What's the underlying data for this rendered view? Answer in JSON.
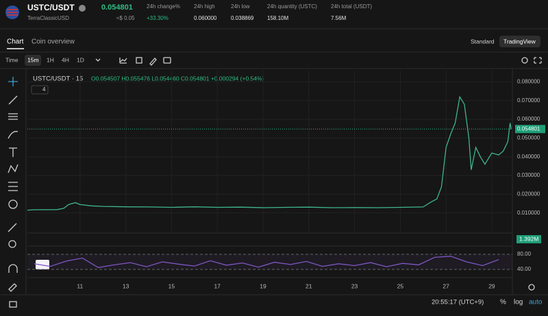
{
  "header": {
    "pair": "USTC/USDT",
    "name": "TerraClassicUSD",
    "price": "0.054801",
    "price_usd": "≈$ 0.05",
    "stats": [
      {
        "label": "24h change%",
        "value": "+33.30%"
      },
      {
        "label": "24h high",
        "value": "0.060000"
      },
      {
        "label": "24h low",
        "value": "0.038869"
      },
      {
        "label": "24h quantity (USTC)",
        "value": "158.10M"
      },
      {
        "label": "24h total (USDT)",
        "value": "7.56M"
      }
    ]
  },
  "tabs": [
    "Chart",
    "Coin overview"
  ],
  "views": [
    "Standard",
    "TradingView"
  ],
  "toolbar": {
    "label": "Time",
    "intervals": [
      "15m",
      "1H",
      "4H",
      "1D"
    ]
  },
  "legend": {
    "symbol": "USTC/USDT · 15",
    "ohlc": "O0.054507 H0.055476 L0.054460 C0.054801 +0.000294 (+0.54%)",
    "indicator_count": "4"
  },
  "volume_label": "1.392M",
  "chart_data": [
    {
      "type": "line",
      "color": "#3fb68b",
      "x": [
        8.7,
        9,
        10,
        10.3,
        10.5,
        10.8,
        11,
        11.5,
        12,
        13,
        14,
        15,
        16,
        17,
        18,
        19,
        20,
        21,
        22,
        23,
        24,
        25,
        26,
        26.3,
        26.6,
        26.8,
        27,
        27.2,
        27.4,
        27.6,
        27.8,
        28.0,
        28.1,
        28.3,
        28.5,
        28.7,
        29,
        29.3,
        29.5,
        29.7,
        29.8,
        29.85
      ],
      "values": [
        0.0115,
        0.0117,
        0.0118,
        0.0125,
        0.0145,
        0.0155,
        0.0145,
        0.0138,
        0.0135,
        0.0133,
        0.0132,
        0.013,
        0.0133,
        0.013,
        0.0131,
        0.0128,
        0.013,
        0.0131,
        0.0128,
        0.0129,
        0.0128,
        0.013,
        0.0132,
        0.0155,
        0.0175,
        0.024,
        0.045,
        0.052,
        0.058,
        0.072,
        0.068,
        0.05,
        0.033,
        0.045,
        0.04,
        0.036,
        0.042,
        0.041,
        0.043,
        0.048,
        0.058,
        0.0548
      ],
      "last_value": 0.054801,
      "xlim": [
        8.7,
        29.9
      ],
      "xticks": [
        11,
        13,
        15,
        17,
        19,
        21,
        23,
        25,
        27,
        29
      ],
      "ylim": [
        0,
        0.086
      ],
      "yticks": [
        {
          "value": 0.01,
          "label": "0.010000"
        },
        {
          "value": 0.02,
          "label": "0.020000"
        },
        {
          "value": 0.03,
          "label": "0.030000"
        },
        {
          "value": 0.04,
          "label": "0.040000"
        },
        {
          "value": 0.05,
          "label": "0.050000"
        },
        {
          "value": 0.06,
          "label": "0.060000"
        },
        {
          "value": 0.07,
          "label": "0.070000"
        },
        {
          "value": 0.08,
          "label": "0.080000"
        }
      ]
    },
    {
      "type": "line",
      "color": "#7e57c2",
      "x": [
        9,
        9.7,
        10.4,
        11.1,
        11.8,
        12.5,
        13.2,
        13.9,
        14.6,
        15.3,
        16,
        16.7,
        17.4,
        18.1,
        18.8,
        19.5,
        20.2,
        20.9,
        21.6,
        22.3,
        23,
        23.7,
        24.4,
        25.1,
        25.8,
        26.5,
        27.2,
        27.9,
        28.6,
        29.3
      ],
      "values": [
        55,
        48,
        62,
        70,
        45,
        52,
        58,
        47,
        60,
        54,
        49,
        63,
        51,
        57,
        46,
        59,
        53,
        61,
        48,
        55,
        50,
        58,
        47,
        56,
        52,
        72,
        75,
        60,
        50,
        66
      ],
      "xlim": [
        8.7,
        29.9
      ],
      "ylim": [
        20,
        100
      ],
      "yticks": [
        {
          "value": 80,
          "label": "80.00"
        },
        {
          "value": 40,
          "label": "40.00"
        }
      ]
    }
  ],
  "footer": {
    "time": "20:55:17 (UTC+9)",
    "options": [
      "%",
      "log",
      "auto"
    ]
  }
}
